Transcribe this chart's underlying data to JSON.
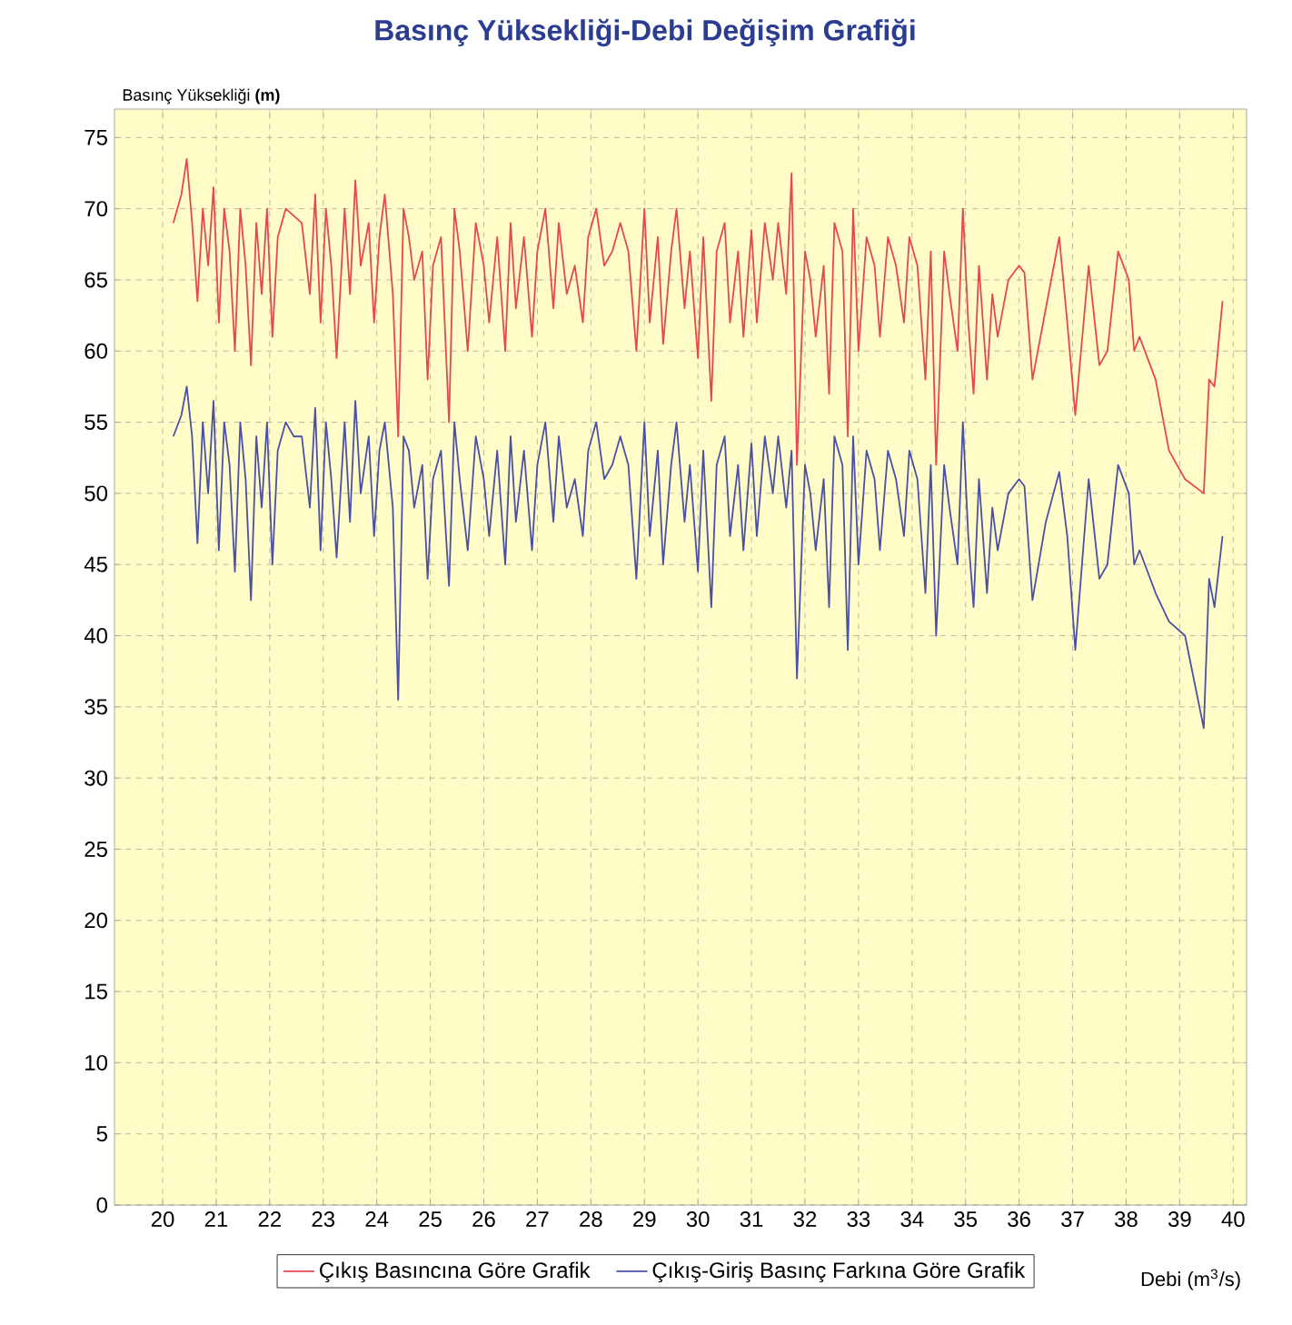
{
  "chart_data": {
    "type": "line",
    "title": "Basınç Yüksekliği-Debi Değişim Grafiği",
    "xlabel": "Debi (m$^{3}$/s)",
    "ylabel": "Basınç Yüksekliği **(m)**",
    "x": [
      20.2,
      20.35,
      20.45,
      20.55,
      20.65,
      20.75,
      20.85,
      20.95,
      21.05,
      21.15,
      21.25,
      21.35,
      21.45,
      21.55,
      21.65,
      21.75,
      21.85,
      21.95,
      22.05,
      22.15,
      22.3,
      22.45,
      22.6,
      22.75,
      22.85,
      22.95,
      23.05,
      23.15,
      23.25,
      23.4,
      23.5,
      23.6,
      23.7,
      23.85,
      23.95,
      24.05,
      24.15,
      24.3,
      24.4,
      24.5,
      24.6,
      24.7,
      24.85,
      24.95,
      25.05,
      25.2,
      25.35,
      25.45,
      25.55,
      25.7,
      25.85,
      26.0,
      26.1,
      26.25,
      26.4,
      26.5,
      26.6,
      26.75,
      26.9,
      27.0,
      27.15,
      27.3,
      27.4,
      27.55,
      27.7,
      27.85,
      27.95,
      28.1,
      28.25,
      28.4,
      28.55,
      28.7,
      28.85,
      29.0,
      29.1,
      29.25,
      29.35,
      29.5,
      29.6,
      29.75,
      29.85,
      30.0,
      30.1,
      30.25,
      30.35,
      30.5,
      30.6,
      30.75,
      30.85,
      31.0,
      31.1,
      31.25,
      31.4,
      31.5,
      31.65,
      31.75,
      31.85,
      32.0,
      32.1,
      32.2,
      32.35,
      32.45,
      32.55,
      32.7,
      32.8,
      32.9,
      33.0,
      33.15,
      33.3,
      33.4,
      33.55,
      33.7,
      33.85,
      33.95,
      34.1,
      34.25,
      34.35,
      34.45,
      34.6,
      34.7,
      34.85,
      34.95,
      35.05,
      35.15,
      35.25,
      35.4,
      35.5,
      35.6,
      35.8,
      36.0,
      36.1,
      36.25,
      36.5,
      36.75,
      36.9,
      37.05,
      37.3,
      37.5,
      37.65,
      37.85,
      38.05,
      38.15,
      38.25,
      38.55,
      38.8,
      39.1,
      39.45,
      39.55,
      39.65,
      39.8
    ],
    "series": [
      {
        "name": "Çıkış Basıncına Göre Grafik",
        "color": "#e8474f",
        "values": [
          69,
          71,
          73.5,
          69,
          63.5,
          70,
          66,
          71.5,
          62,
          70,
          67,
          60,
          70,
          66,
          59,
          69,
          64,
          70,
          61,
          68,
          70,
          69.5,
          69,
          64,
          71,
          62,
          70,
          66,
          59.5,
          70,
          64,
          72,
          66,
          69,
          62,
          68,
          71,
          64,
          54,
          70,
          68,
          65,
          67,
          58,
          66,
          68,
          55,
          70,
          67,
          60,
          69,
          66,
          62,
          68,
          60,
          69,
          63,
          68,
          61,
          67,
          70,
          63,
          69,
          64,
          66,
          62,
          68,
          70,
          66,
          67,
          69,
          67,
          60,
          70,
          62,
          68,
          60.5,
          67,
          70,
          63,
          67,
          59.5,
          68,
          56.5,
          67,
          69,
          62,
          67,
          61,
          68.5,
          62,
          69,
          65,
          69,
          64,
          72.5,
          52,
          67,
          65,
          61,
          66,
          57,
          69,
          67,
          54,
          70,
          60,
          68,
          66,
          61,
          68,
          66,
          62,
          68,
          66,
          58,
          67,
          52,
          67,
          64,
          60,
          70,
          62,
          57,
          66,
          58,
          64,
          61,
          65,
          66,
          65.5,
          58,
          63,
          68,
          62,
          55.5,
          66,
          59,
          60,
          67,
          65,
          60,
          61,
          58,
          53,
          51,
          50,
          58,
          57.5,
          63.5
        ]
      },
      {
        "name": "Çıkış-Giriş Basınç Farkına Göre Grafik",
        "color": "#4a4fa8",
        "values": [
          54,
          55.5,
          57.5,
          54,
          46.5,
          55,
          50,
          56.5,
          46,
          55,
          52,
          44.5,
          55,
          51,
          42.5,
          54,
          49,
          55,
          45,
          53,
          55,
          54,
          54,
          49,
          56,
          46,
          55,
          51,
          45.5,
          55,
          48,
          56.5,
          50,
          54,
          47,
          53,
          55,
          49,
          35.5,
          54,
          53,
          49,
          52,
          44,
          51,
          53,
          43.5,
          55,
          51,
          46,
          54,
          51,
          47,
          53,
          45,
          54,
          48,
          53,
          46,
          52,
          55,
          48,
          54,
          49,
          51,
          47,
          53,
          55,
          51,
          52,
          54,
          52,
          44,
          55,
          47,
          53,
          45,
          52,
          55,
          48,
          52,
          44.5,
          53,
          42,
          52,
          54,
          47,
          52,
          46,
          53.5,
          47,
          54,
          50,
          54,
          49,
          53,
          37,
          52,
          50,
          46,
          51,
          42,
          54,
          52,
          39,
          54,
          45,
          53,
          51,
          46,
          53,
          51,
          47,
          53,
          51,
          43,
          52,
          40,
          52,
          49,
          45,
          55,
          47,
          42,
          51,
          43,
          49,
          46,
          50,
          51,
          50.5,
          42.5,
          48,
          51.5,
          47,
          39,
          51,
          44,
          45,
          52,
          50,
          45,
          46,
          43,
          41,
          40,
          33.5,
          44,
          42,
          47
        ]
      }
    ],
    "xlim": [
      19.1,
      40.25
    ],
    "ylim": [
      0,
      77
    ],
    "xticks": [
      20,
      21,
      22,
      23,
      24,
      25,
      26,
      27,
      28,
      29,
      30,
      31,
      32,
      33,
      34,
      35,
      36,
      37,
      38,
      39,
      40
    ],
    "yticks": [
      0,
      5,
      10,
      15,
      20,
      25,
      30,
      35,
      40,
      45,
      50,
      55,
      60,
      65,
      70,
      75
    ],
    "grid": true,
    "legend": "bottom",
    "marker": "none",
    "line_style": "solid"
  }
}
